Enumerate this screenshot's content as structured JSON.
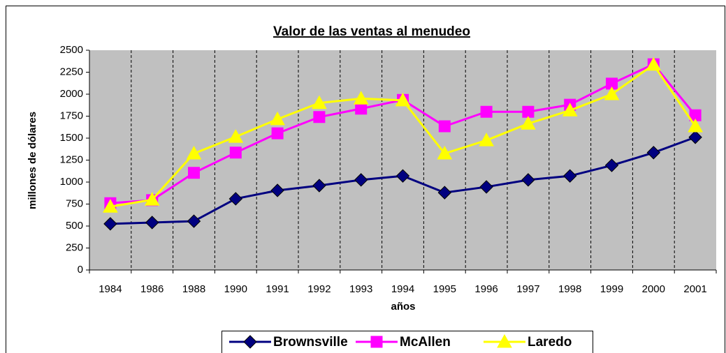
{
  "chart_data": {
    "type": "line",
    "title": "Valor de las ventas al menudeo",
    "x_label": "años",
    "y_label": "millones de dólares",
    "categories": [
      "1984",
      "1986",
      "1988",
      "1990",
      "1991",
      "1992",
      "1993",
      "1994",
      "1995",
      "1996",
      "1997",
      "1998",
      "1999",
      "2000",
      "2001"
    ],
    "series": [
      {
        "name": "Brownsville",
        "color": "#000080",
        "marker": "diamond",
        "values": [
          525,
          540,
          555,
          810,
          905,
          960,
          1025,
          1070,
          880,
          945,
          1025,
          1070,
          1190,
          1335,
          1510
        ]
      },
      {
        "name": "McAllen",
        "color": "#ff00ff",
        "marker": "square",
        "values": [
          760,
          795,
          1105,
          1335,
          1555,
          1740,
          1835,
          1935,
          1635,
          1800,
          1800,
          1880,
          2120,
          2340,
          1760
        ]
      },
      {
        "name": "Laredo",
        "color": "#ffff00",
        "marker": "triangle",
        "values": [
          720,
          800,
          1325,
          1515,
          1715,
          1900,
          1950,
          1930,
          1325,
          1475,
          1665,
          1815,
          2000,
          2335,
          1635
        ]
      }
    ],
    "ylim": [
      0,
      2500
    ],
    "yticks": [
      0,
      250,
      500,
      750,
      1000,
      1250,
      1500,
      1750,
      2000,
      2250,
      2500
    ],
    "grid": "vertical-dashed",
    "legend": "bottom"
  }
}
